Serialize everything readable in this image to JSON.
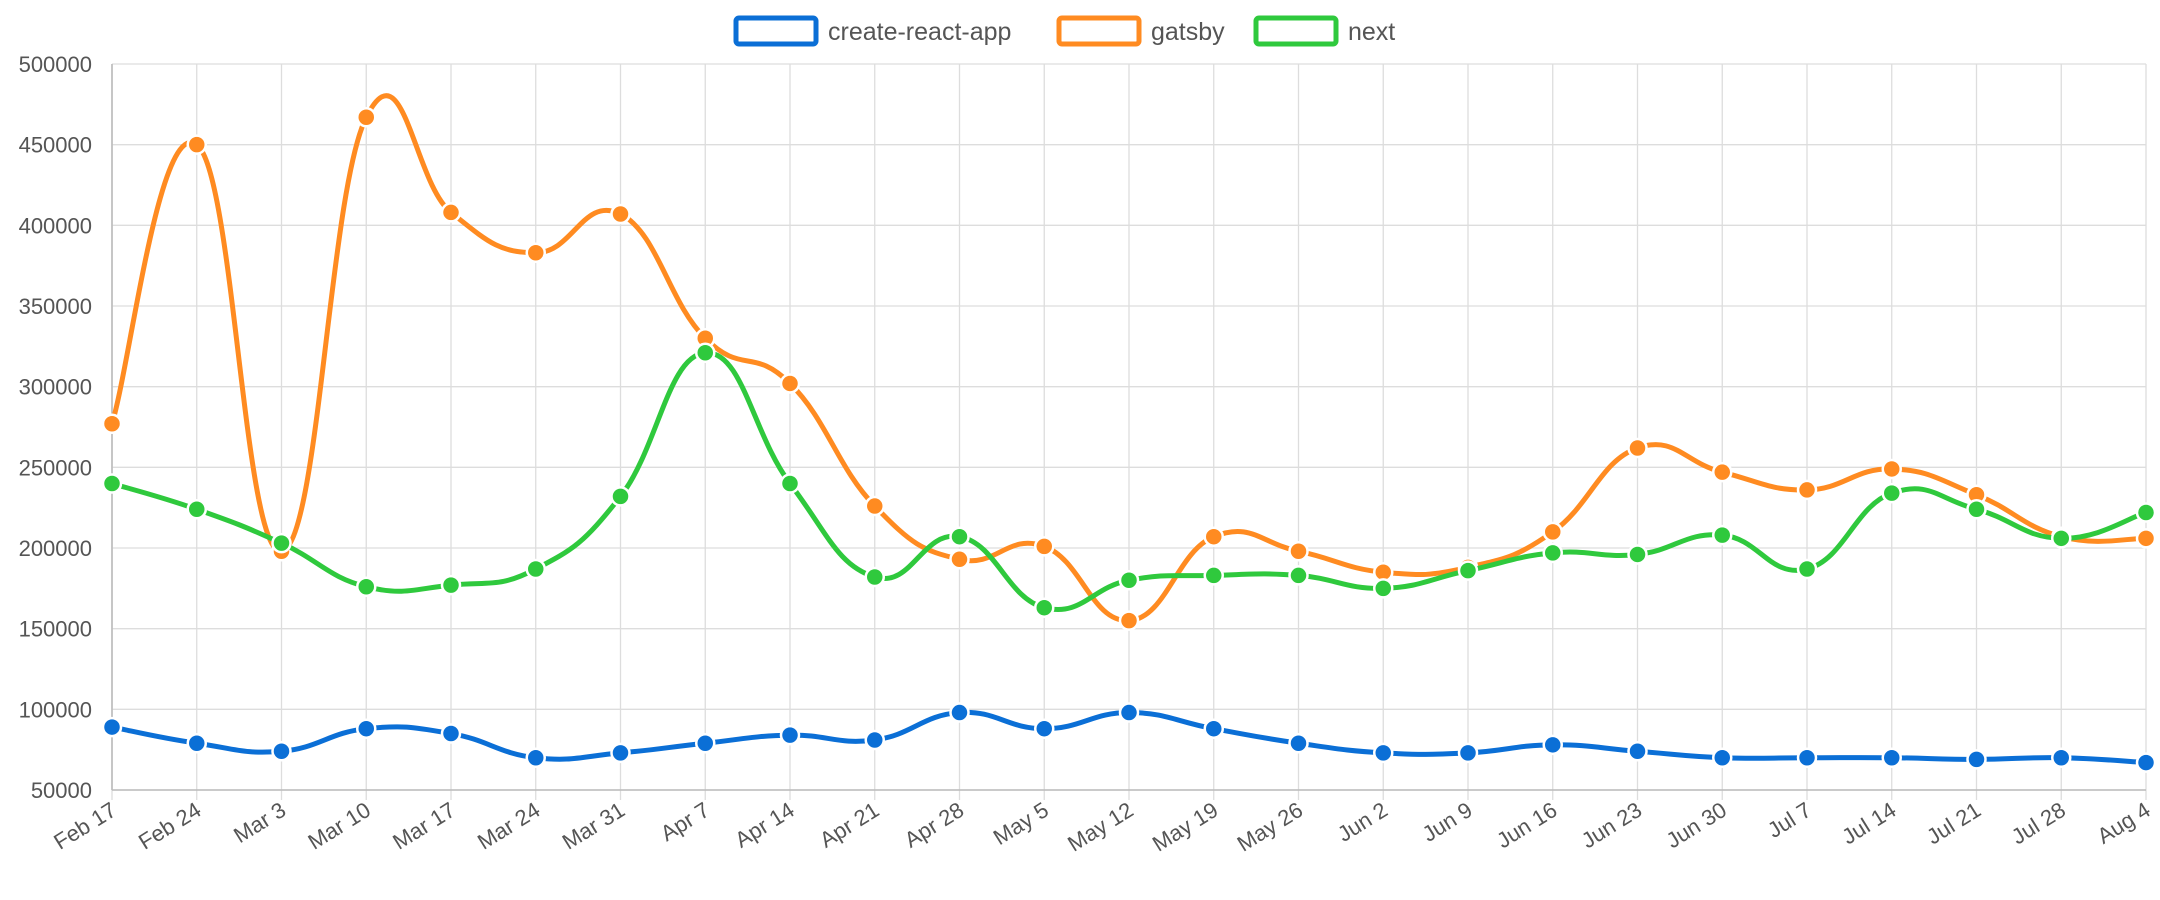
{
  "chart_data": {
    "type": "line",
    "title": "",
    "xlabel": "",
    "ylabel": "",
    "ylim": [
      50000,
      500000
    ],
    "yticks": [
      "500000",
      "450000",
      "400000",
      "350000",
      "300000",
      "250000",
      "200000",
      "150000",
      "100000",
      "50000"
    ],
    "grid": true,
    "legend_position": "top-center",
    "categories": [
      "Feb 17",
      "Feb 24",
      "Mar 3",
      "Mar 10",
      "Mar 17",
      "Mar 24",
      "Mar 31",
      "Apr 7",
      "Apr 14",
      "Apr 21",
      "Apr 28",
      "May 5",
      "May 12",
      "May 19",
      "May 26",
      "Jun 2",
      "Jun 9",
      "Jun 16",
      "Jun 23",
      "Jun 30",
      "Jul 7",
      "Jul 14",
      "Jul 21",
      "Jul 28",
      "Aug 4"
    ],
    "series": [
      {
        "name": "create-react-app",
        "color": "#0b6fd6",
        "values": [
          89000,
          79000,
          74000,
          88000,
          85000,
          70000,
          73000,
          79000,
          84000,
          81000,
          98000,
          88000,
          98000,
          88000,
          79000,
          73000,
          73000,
          78000,
          74000,
          70000,
          70000,
          70000,
          69000,
          70000,
          67000
        ]
      },
      {
        "name": "gatsby",
        "color": "#ff8b21",
        "values": [
          277000,
          450000,
          198000,
          467000,
          408000,
          383000,
          407000,
          330000,
          302000,
          226000,
          193000,
          201000,
          155000,
          207000,
          198000,
          185000,
          188000,
          210000,
          262000,
          247000,
          236000,
          249000,
          233000,
          207000,
          206000
        ]
      },
      {
        "name": "next",
        "color": "#2fc93d",
        "values": [
          240000,
          224000,
          203000,
          176000,
          177000,
          187000,
          232000,
          321000,
          240000,
          182000,
          207000,
          163000,
          180000,
          183000,
          183000,
          175000,
          186000,
          197000,
          196000,
          208000,
          187000,
          234000,
          224000,
          206000,
          222000
        ]
      }
    ]
  }
}
